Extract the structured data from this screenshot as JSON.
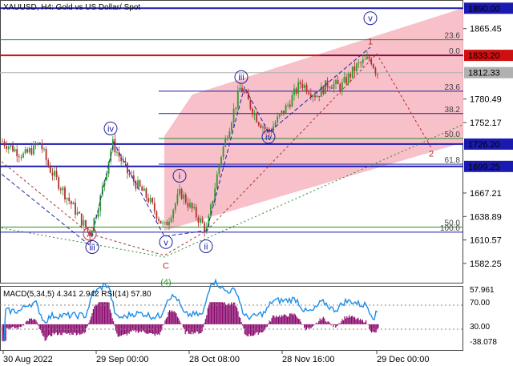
{
  "chart_data": {
    "type": "candlestick",
    "title": "XAUUSD, H4:  Gold vs US Dollar/ Spot",
    "y_ticks": [
      "1865.45",
      "1780.49",
      "1752.17",
      "1667.21",
      "1638.89",
      "1610.57",
      "1582.25"
    ],
    "y_range": [
      1560,
      1898
    ],
    "x_ticks": [
      "30 Aug 2022",
      "29 Sep 00:00",
      "28 Oct 08:00",
      "28 Nov 16:00",
      "29 Dec 00:00"
    ],
    "price_levels": [
      {
        "value": "1890.00",
        "color": "#1a1ab0"
      },
      {
        "value": "1833.20",
        "color": "#d01010"
      },
      {
        "value": "1812.33",
        "color": "#b0b0b0"
      },
      {
        "value": "1726.20",
        "color": "#1a1ab0"
      },
      {
        "value": "1699.25",
        "color": "#1a1ab0"
      }
    ],
    "fibo": [
      {
        "label": "23.6",
        "value": 1852
      },
      {
        "label": "0.0",
        "value": 1833.2
      },
      {
        "label": "23.6",
        "value": 1790
      },
      {
        "label": "38.2",
        "value": 1763
      },
      {
        "label": "50.0",
        "value": 1733
      },
      {
        "label": "61.8",
        "value": 1702
      },
      {
        "label": "50.0",
        "value": 1626
      },
      {
        "label": "100.0",
        "value": 1620
      }
    ],
    "wave_labels": [
      {
        "text": "1",
        "color": "#b03030"
      },
      {
        "text": "v",
        "color": "#2020a0",
        "circled": true
      },
      {
        "text": "iii",
        "color": "#2020a0",
        "circled": true
      },
      {
        "text": "iv",
        "color": "#2020a0",
        "circled": true
      },
      {
        "text": "iv",
        "color": "#2020a0",
        "circled": true
      },
      {
        "text": "i",
        "color": "#2020a0",
        "circled": true
      },
      {
        "text": "v",
        "color": "#2020a0",
        "circled": true
      },
      {
        "text": "ii",
        "color": "#2020a0",
        "circled": true
      },
      {
        "text": "iii",
        "color": "#2020a0",
        "circled": true
      },
      {
        "text": "A",
        "color": "#c03030",
        "circled": true
      },
      {
        "text": "C",
        "color": "#c03030"
      },
      {
        "text": "(4)",
        "color": "#2a9a2a"
      },
      {
        "text": "2",
        "color": "#b03030"
      }
    ],
    "indicator_header": "MACD(5,34,5) 4.341 2.942 RSI(14) 57.80",
    "indicator_ticks": [
      "57.961",
      "70.00",
      "30.00",
      "-38.078"
    ],
    "colors": {
      "bull": "#2e9a2e",
      "bear": "#b03030",
      "channel": "#f7b9c3",
      "macd": "#8b0a6e",
      "rsi": "#1e8ee8",
      "wave": "#1a1ab0"
    }
  }
}
